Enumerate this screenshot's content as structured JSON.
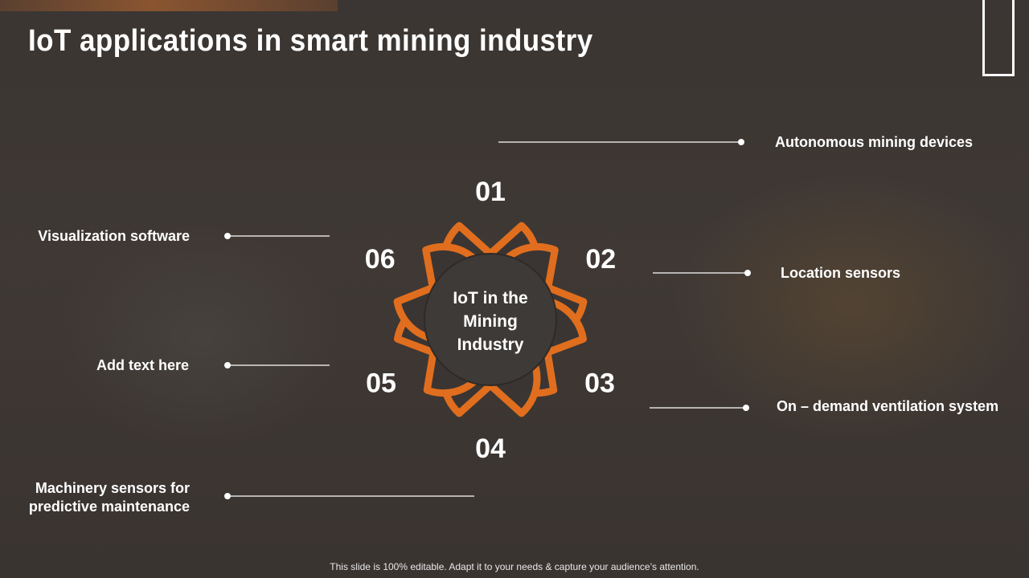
{
  "title": "IoT applications in smart mining industry",
  "center": {
    "lines": [
      "IoT in the",
      "Mining",
      "Industry"
    ]
  },
  "petals": [
    {
      "number": "01",
      "label": "Autonomous mining devices"
    },
    {
      "number": "02",
      "label": "Location sensors"
    },
    {
      "number": "03",
      "label": "On – demand ventilation system"
    },
    {
      "number": "04",
      "label": "Machinery sensors for predictive maintenance",
      "label_lines": [
        "Machinery sensors for",
        "predictive maintenance"
      ]
    },
    {
      "number": "05",
      "label": "Add text here"
    },
    {
      "number": "06",
      "label": "Visualization software"
    }
  ],
  "footer": "This slide is 100% editable. Adapt it to your needs & capture your audience’s attention.",
  "colors": {
    "accent": "#e06e1e",
    "petal_fill": "#3a3532",
    "center_fill": "#3e3a37",
    "line": "#ffffff"
  }
}
